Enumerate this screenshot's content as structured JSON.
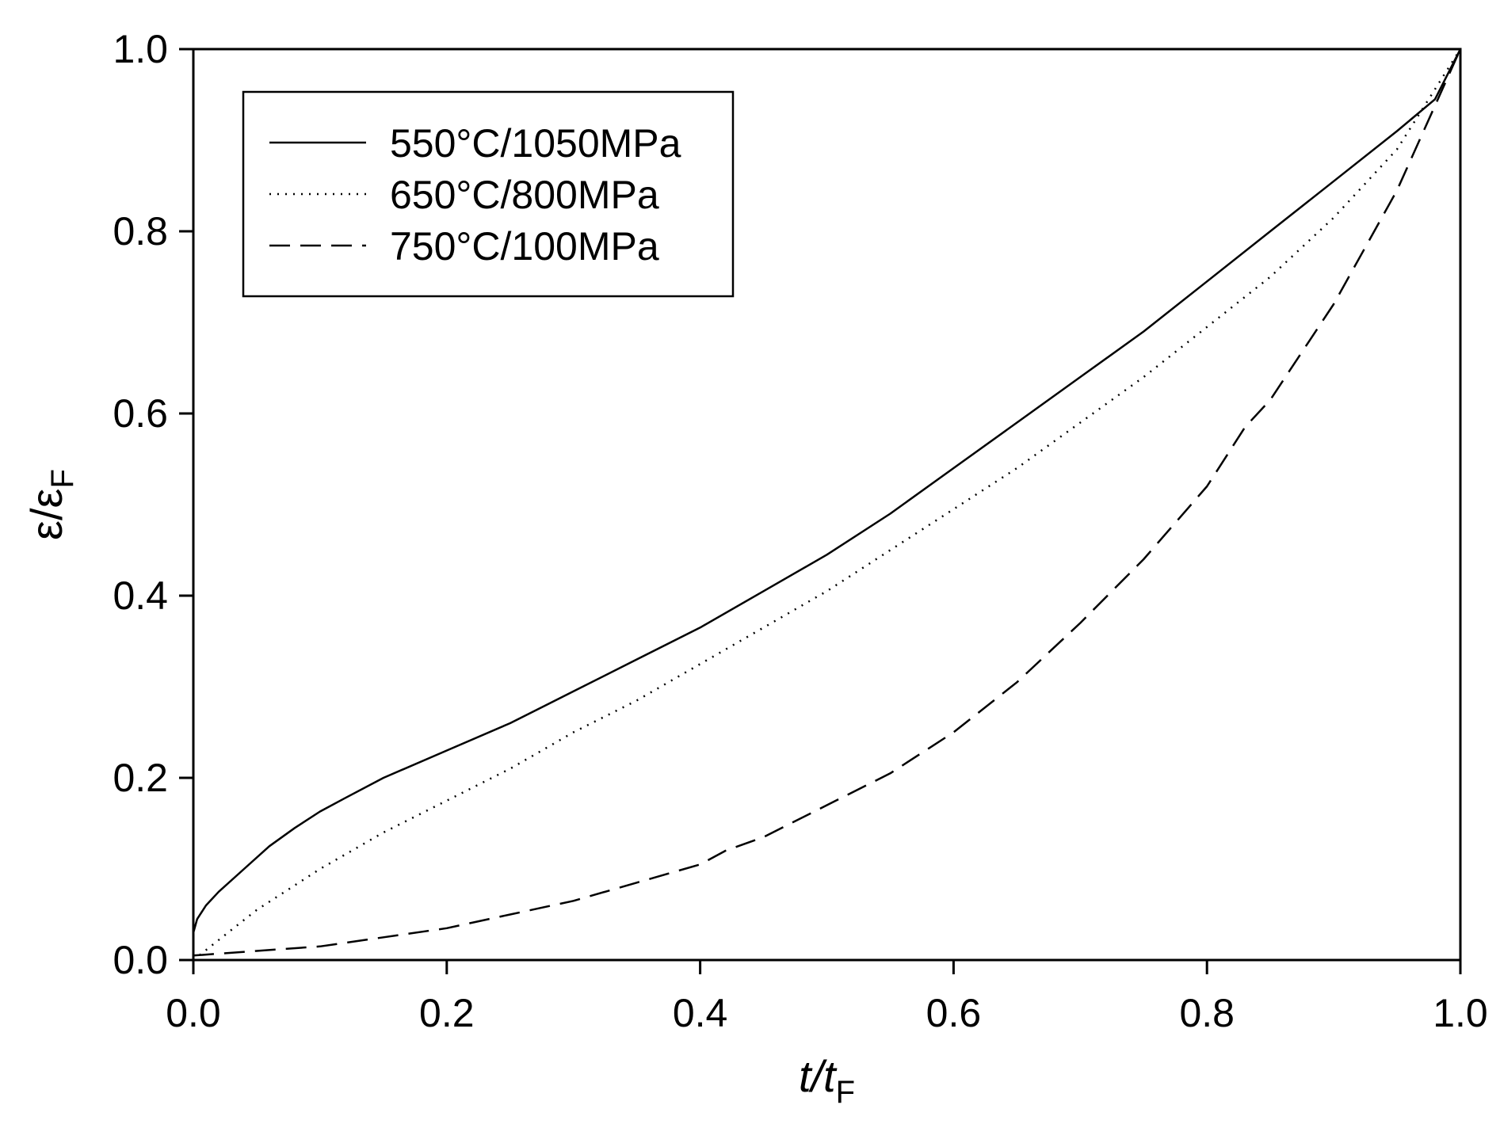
{
  "chart_data": {
    "type": "line",
    "title": "",
    "xlabel": {
      "main": "t/t",
      "sub": "F"
    },
    "ylabel": {
      "main": "ε/ε",
      "sub": "F"
    },
    "xlim": [
      0,
      1
    ],
    "ylim": [
      0,
      1
    ],
    "x_ticks": [
      "0.0",
      "0.2",
      "0.4",
      "0.6",
      "0.8",
      "1.0"
    ],
    "y_ticks": [
      "0.0",
      "0.2",
      "0.4",
      "0.6",
      "0.8",
      "1.0"
    ],
    "grid": false,
    "legend_position": "top-left",
    "series": [
      {
        "name": "550°C/1050MPa",
        "style": "solid",
        "color": "#000000",
        "x": [
          0.0,
          0.003,
          0.01,
          0.02,
          0.04,
          0.06,
          0.08,
          0.1,
          0.12,
          0.15,
          0.2,
          0.25,
          0.3,
          0.35,
          0.4,
          0.45,
          0.5,
          0.55,
          0.6,
          0.65,
          0.7,
          0.75,
          0.8,
          0.85,
          0.9,
          0.95,
          0.98,
          1.0
        ],
        "y": [
          0.03,
          0.045,
          0.06,
          0.075,
          0.1,
          0.125,
          0.145,
          0.163,
          0.178,
          0.2,
          0.23,
          0.26,
          0.295,
          0.33,
          0.365,
          0.405,
          0.445,
          0.49,
          0.54,
          0.59,
          0.64,
          0.69,
          0.745,
          0.8,
          0.855,
          0.91,
          0.945,
          1.0
        ]
      },
      {
        "name": "650°C/800MPa",
        "style": "dotted",
        "color": "#000000",
        "x": [
          0.0,
          0.05,
          0.1,
          0.15,
          0.2,
          0.25,
          0.3,
          0.35,
          0.4,
          0.45,
          0.5,
          0.55,
          0.6,
          0.65,
          0.7,
          0.75,
          0.8,
          0.85,
          0.9,
          0.95,
          1.0
        ],
        "y": [
          0.0,
          0.055,
          0.1,
          0.14,
          0.175,
          0.21,
          0.25,
          0.285,
          0.325,
          0.365,
          0.405,
          0.45,
          0.495,
          0.54,
          0.59,
          0.64,
          0.695,
          0.75,
          0.815,
          0.89,
          1.0
        ]
      },
      {
        "name": "750°C/100MPa",
        "style": "dashed",
        "color": "#000000",
        "x": [
          0.0,
          0.05,
          0.1,
          0.15,
          0.2,
          0.25,
          0.3,
          0.35,
          0.4,
          0.42,
          0.45,
          0.5,
          0.55,
          0.6,
          0.65,
          0.7,
          0.75,
          0.8,
          0.83,
          0.85,
          0.9,
          0.95,
          1.0
        ],
        "y": [
          0.005,
          0.01,
          0.015,
          0.025,
          0.035,
          0.05,
          0.065,
          0.085,
          0.105,
          0.12,
          0.135,
          0.17,
          0.205,
          0.25,
          0.305,
          0.37,
          0.44,
          0.52,
          0.585,
          0.615,
          0.72,
          0.845,
          1.0
        ]
      }
    ]
  }
}
